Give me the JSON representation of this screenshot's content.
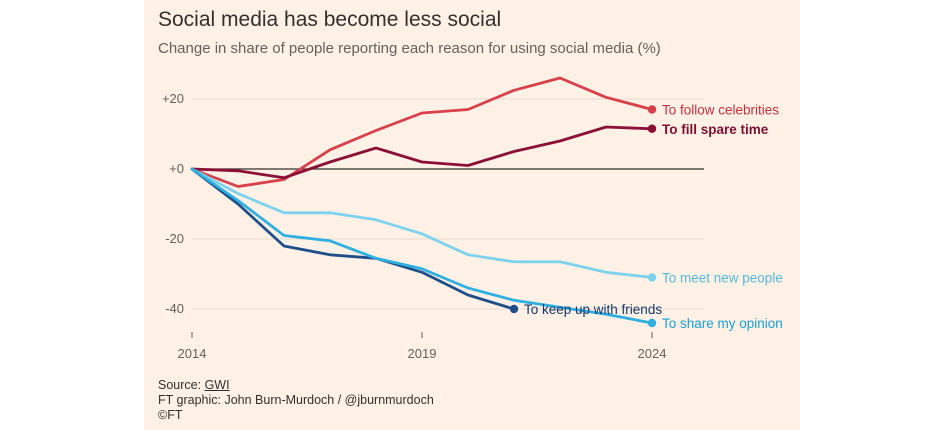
{
  "title": "Social media has become less social",
  "subtitle": "Change in share of people reporting each reason for using social media (%)",
  "footer": {
    "source_prefix": "Source: ",
    "source_name": "GWI",
    "credit": "FT graphic: John Burn-Murdoch / @jburnmurdoch",
    "copyright": "©FT"
  },
  "chart_data": {
    "type": "line",
    "title": "Social media has become less social",
    "subtitle": "Change in share of people reporting each reason for using social media (%)",
    "xlabel": "",
    "ylabel": "",
    "xlim": [
      2014,
      2024
    ],
    "ylim": [
      -45,
      28
    ],
    "x_ticks": [
      {
        "value": 2014,
        "label": "2014"
      },
      {
        "value": 2019,
        "label": "2019"
      },
      {
        "value": 2024,
        "label": "2024"
      }
    ],
    "y_ticks": [
      {
        "value": 20,
        "label": "+20"
      },
      {
        "value": 0,
        "label": "+0"
      },
      {
        "value": -20,
        "label": "-20"
      },
      {
        "value": -40,
        "label": "-40"
      }
    ],
    "zero_line": true,
    "series": [
      {
        "name": "To follow celebrities",
        "color": "#d9404b",
        "label_color": "#c8303f",
        "bold": false,
        "x": [
          2014,
          2015,
          2016,
          2017,
          2018,
          2019,
          2020,
          2021,
          2022,
          2023,
          2024
        ],
        "values": [
          0,
          -5,
          -3,
          5.5,
          11,
          16,
          17,
          22.5,
          26,
          20.5,
          17
        ]
      },
      {
        "name": "To fill spare time",
        "color": "#8b1038",
        "label_color": "#7d0f33",
        "bold": true,
        "x": [
          2014,
          2015,
          2016,
          2017,
          2018,
          2019,
          2020,
          2021,
          2022,
          2023,
          2024
        ],
        "values": [
          0,
          -0.5,
          -2.5,
          2,
          6,
          2,
          1,
          5,
          8,
          12,
          11.5
        ]
      },
      {
        "name": "To meet new people",
        "color": "#7dd3ed",
        "label_color": "#56b8d9",
        "bold": false,
        "x": [
          2014,
          2015,
          2016,
          2017,
          2018,
          2019,
          2020,
          2021,
          2022,
          2023,
          2024
        ],
        "values": [
          0,
          -7,
          -12.5,
          -12.5,
          -14.5,
          -18.5,
          -24.5,
          -26.5,
          -26.5,
          -29.5,
          -31
        ]
      },
      {
        "name": "To keep up with friends",
        "color": "#1e4f8a",
        "label_color": "#14386b",
        "bold": false,
        "x": [
          2014,
          2015,
          2016,
          2017,
          2018,
          2019,
          2020,
          2021
        ],
        "values": [
          0,
          -10,
          -22,
          -24.5,
          -25.5,
          -29.5,
          -36,
          -40
        ]
      },
      {
        "name": "To share my opinion",
        "color": "#2fb0e0",
        "label_color": "#1a9ed4",
        "bold": false,
        "x": [
          2014,
          2015,
          2016,
          2017,
          2018,
          2019,
          2020,
          2021,
          2022,
          2023,
          2024
        ],
        "values": [
          0,
          -9,
          -19,
          -20.5,
          -25.5,
          -28.5,
          -34,
          -37.5,
          -39.5,
          -41.5,
          -44
        ]
      }
    ]
  }
}
